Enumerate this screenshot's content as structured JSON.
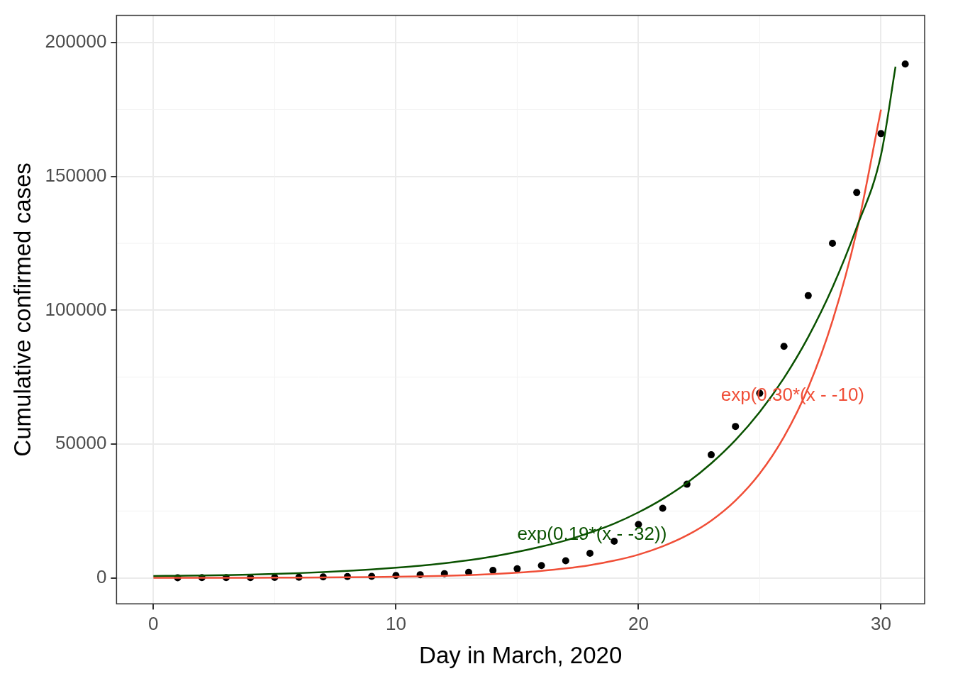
{
  "chart_data": {
    "type": "scatter",
    "x_label": "Day in March, 2020",
    "y_label": "Cumulative confirmed cases",
    "xlim": [
      -1.52,
      31.8
    ],
    "ylim": [
      -9680,
      210200
    ],
    "xticks": [
      0,
      10,
      20,
      30
    ],
    "yticks": [
      0,
      50000,
      100000,
      150000,
      200000
    ],
    "grid": true,
    "series": [
      {
        "type": "scatter",
        "marker": "circle",
        "color": "#000000",
        "x": [
          1,
          2,
          3,
          4,
          5,
          6,
          7,
          8,
          9,
          10,
          11,
          12,
          13,
          14,
          15,
          16,
          17,
          18,
          19,
          20,
          21,
          22,
          23,
          24,
          25,
          26,
          27,
          28,
          29,
          30,
          31
        ],
        "values": [
          75,
          100,
          120,
          125,
          200,
          250,
          400,
          500,
          600,
          900,
          1200,
          1600,
          2100,
          2800,
          3400,
          4600,
          6400,
          9200,
          13700,
          20000,
          26000,
          35000,
          46000,
          56600,
          69000,
          86500,
          105500,
          125000,
          144000,
          166000,
          192000
        ]
      },
      {
        "type": "line",
        "line_style": "solid",
        "color": "#0a5200",
        "x": [
          0,
          1,
          2,
          3,
          4,
          5,
          6,
          7,
          8,
          9,
          10,
          11,
          12,
          13,
          14,
          15,
          16,
          17,
          18,
          19,
          20,
          21,
          22,
          23,
          24,
          25,
          26,
          27,
          28,
          29,
          30,
          30.6
        ],
        "values": [
          700,
          800,
          900,
          1050,
          1250,
          1500,
          1800,
          2150,
          2600,
          3150,
          3800,
          4550,
          5500,
          6600,
          8000,
          9700,
          11700,
          14000,
          16900,
          20300,
          24500,
          29500,
          35500,
          42800,
          51500,
          62000,
          74700,
          90000,
          108500,
          131000,
          158000,
          191000
        ]
      },
      {
        "type": "line",
        "line_style": "solid",
        "color": "#f04e37",
        "x": [
          0,
          1,
          2,
          3,
          4,
          5,
          6,
          7,
          8,
          9,
          10,
          11,
          12,
          13,
          14,
          15,
          16,
          17,
          18,
          19,
          20,
          21,
          22,
          23,
          24,
          25,
          26,
          27,
          28,
          29,
          30
        ],
        "values": [
          22,
          29,
          39,
          53,
          72,
          97,
          130,
          176,
          238,
          321,
          433,
          585,
          790,
          1070,
          1440,
          1940,
          2620,
          3540,
          4780,
          6450,
          8700,
          11800,
          15900,
          21400,
          28900,
          39000,
          52700,
          71100,
          96000,
          129600,
          175000
        ]
      }
    ],
    "annotations": [
      {
        "text": "exp(0.19*(x - -32))",
        "x": 15,
        "y": 16000,
        "color": "#0a5200"
      },
      {
        "text": "exp(0.30*(x - -10)",
        "x": 23.4,
        "y": 68000,
        "color": "#f04e37"
      }
    ]
  }
}
